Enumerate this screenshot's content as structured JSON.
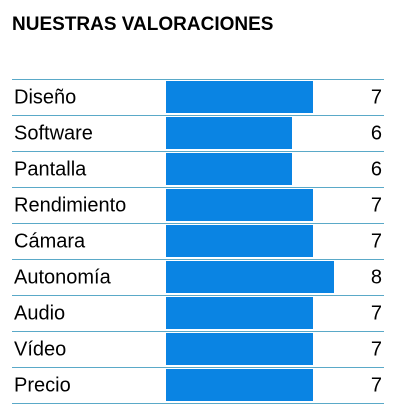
{
  "chart_data": {
    "type": "bar",
    "orientation": "horizontal",
    "title": "NUESTRAS VALORACIONES",
    "categories": [
      "Diseño",
      "Software",
      "Pantalla",
      "Rendimiento",
      "Cámara",
      "Autonomía",
      "Audio",
      "Vídeo",
      "Precio"
    ],
    "values": [
      7,
      6,
      6,
      7,
      7,
      8,
      7,
      7,
      7
    ],
    "color": "#0a84e3"
  }
}
